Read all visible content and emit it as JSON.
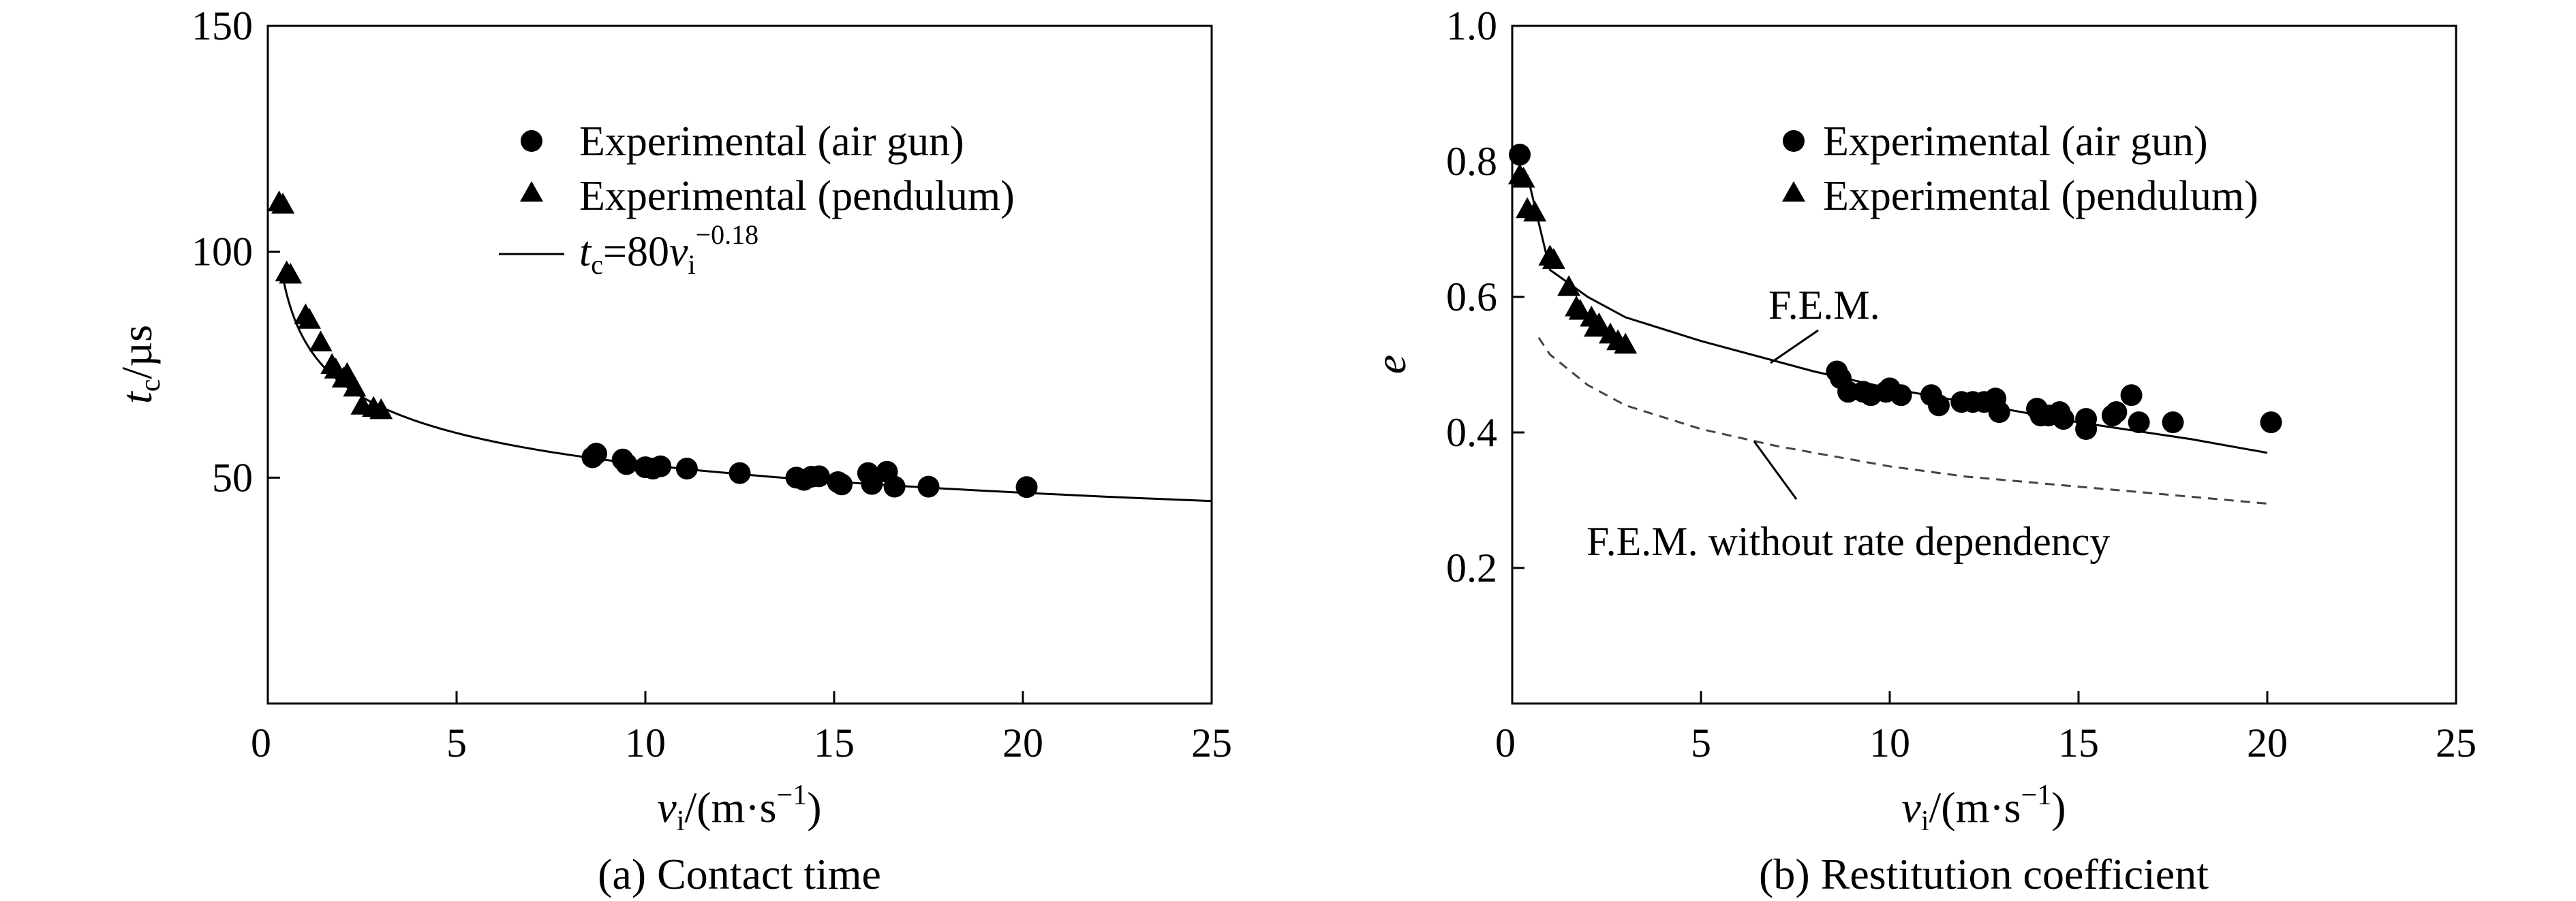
{
  "chart_data": [
    {
      "type": "scatter",
      "caption": "(a) Contact time",
      "xlabel": {
        "main": "v",
        "sub": "i",
        "unit": "/(m·s",
        "sup": "−1",
        "close": ")"
      },
      "ylabel": {
        "main": "t",
        "sub": "c",
        "unit": "/µs"
      },
      "xlim": [
        0,
        25
      ],
      "ylim": [
        0,
        150
      ],
      "xticks": [
        "0",
        "5",
        "10",
        "15",
        "20",
        "25"
      ],
      "yticks": [
        "50",
        "100",
        "150"
      ],
      "legend_position": "top-center",
      "grid": false,
      "series": [
        {
          "name": "Experimental (air gun)",
          "marker": "circle",
          "x": [
            8.6,
            8.7,
            9.4,
            9.5,
            10.0,
            10.2,
            10.4,
            11.1,
            12.5,
            14.0,
            14.2,
            14.4,
            14.6,
            15.1,
            15.2,
            15.9,
            16.0,
            16.4,
            16.6,
            17.5,
            20.1
          ],
          "y": [
            54.5,
            55.3,
            54.0,
            53.0,
            52.3,
            52.0,
            52.5,
            52.0,
            51.0,
            50.0,
            49.5,
            50.2,
            50.3,
            49.0,
            48.5,
            51.0,
            48.6,
            51.3,
            48.0,
            48.0,
            47.9
          ]
        },
        {
          "name": "Experimental (pendulum)",
          "marker": "triangle",
          "x": [
            0.3,
            0.4,
            0.5,
            0.6,
            1.0,
            1.1,
            1.4,
            1.7,
            1.8,
            2.0,
            2.1,
            2.3,
            2.5,
            2.8,
            3.0
          ],
          "y": [
            111.0,
            110.5,
            95.5,
            95.0,
            86.0,
            85.0,
            80.0,
            75.0,
            74.0,
            72.0,
            73.0,
            70.0,
            66.0,
            65.5,
            65.0
          ]
        },
        {
          "name": "t_c=80v_i^-0.18",
          "name_parts": {
            "t": "t",
            "t_sub": "c",
            "eq": "=80",
            "v": "v",
            "v_sub": "i",
            "exp": "−0.18"
          },
          "marker": "line",
          "style": "solid",
          "formula": {
            "coef": 80,
            "exp": -0.18
          },
          "x_range": [
            0.4,
            25
          ]
        }
      ]
    },
    {
      "type": "scatter",
      "caption": "(b) Restitution coefficient",
      "xlabel": {
        "main": "v",
        "sub": "i",
        "unit": "/(m·s",
        "sup": "−1",
        "close": ")"
      },
      "ylabel": {
        "main": "e"
      },
      "xlim": [
        0,
        25
      ],
      "ylim": [
        0,
        1.0
      ],
      "xticks": [
        "0",
        "5",
        "10",
        "15",
        "20",
        "25"
      ],
      "yticks": [
        "0.2",
        "0.4",
        "0.6",
        "0.8",
        "1.0"
      ],
      "legend_position": "top-right",
      "grid": false,
      "series": [
        {
          "name": "Experimental (air gun)",
          "marker": "circle",
          "x": [
            0.2,
            8.6,
            8.7,
            8.9,
            9.3,
            9.5,
            9.9,
            10.0,
            10.3,
            11.1,
            11.3,
            11.9,
            12.2,
            12.5,
            12.8,
            12.9,
            13.9,
            14.0,
            14.2,
            14.5,
            14.6,
            15.2,
            15.2,
            15.9,
            16.0,
            16.4,
            16.6,
            17.5,
            20.1
          ],
          "y": [
            0.81,
            0.49,
            0.48,
            0.46,
            0.46,
            0.455,
            0.46,
            0.465,
            0.455,
            0.455,
            0.44,
            0.445,
            0.445,
            0.445,
            0.45,
            0.43,
            0.435,
            0.425,
            0.425,
            0.43,
            0.42,
            0.42,
            0.405,
            0.425,
            0.43,
            0.455,
            0.415,
            0.415,
            0.415
          ]
        },
        {
          "name": "Experimental (pendulum)",
          "marker": "triangle",
          "x": [
            0.2,
            0.3,
            0.4,
            0.6,
            1.0,
            1.1,
            1.5,
            1.7,
            1.8,
            2.1,
            2.2,
            2.3,
            2.6,
            2.8,
            3.0
          ],
          "y": [
            0.78,
            0.775,
            0.73,
            0.725,
            0.66,
            0.655,
            0.615,
            0.585,
            0.58,
            0.57,
            0.555,
            0.56,
            0.545,
            0.535,
            0.53
          ]
        },
        {
          "name": "F.E.M.",
          "marker": "line",
          "style": "solid",
          "points": [
            [
              0.4,
              0.78
            ],
            [
              1.0,
              0.64
            ],
            [
              2.0,
              0.6
            ],
            [
              3.0,
              0.57
            ],
            [
              5.0,
              0.535
            ],
            [
              8.0,
              0.49
            ],
            [
              10.0,
              0.465
            ],
            [
              12.0,
              0.445
            ],
            [
              15.0,
              0.415
            ],
            [
              18.0,
              0.39
            ],
            [
              20.0,
              0.37
            ]
          ]
        },
        {
          "name": "F.E.M. without rate dependency",
          "marker": "line",
          "style": "dashed",
          "points": [
            [
              0.7,
              0.54
            ],
            [
              1.0,
              0.515
            ],
            [
              2.0,
              0.47
            ],
            [
              3.0,
              0.44
            ],
            [
              5.0,
              0.405
            ],
            [
              7.0,
              0.38
            ],
            [
              8.0,
              0.37
            ],
            [
              10.0,
              0.35
            ],
            [
              12.0,
              0.335
            ],
            [
              15.0,
              0.32
            ],
            [
              18.0,
              0.305
            ],
            [
              20.0,
              0.295
            ]
          ]
        }
      ]
    }
  ]
}
